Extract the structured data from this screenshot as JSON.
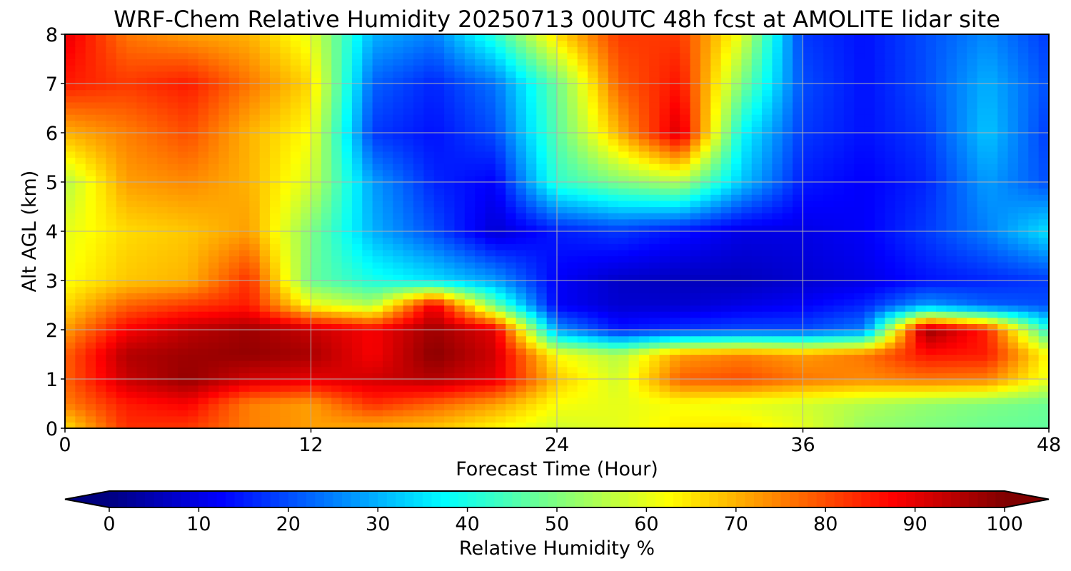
{
  "chart_data": {
    "type": "heatmap",
    "title": "WRF-Chem Relative Humidity 20250713 00UTC 48h fcst at AMOLITE lidar site",
    "xlabel": "Forecast Time (Hour)",
    "ylabel": "Alt AGL (km)",
    "xlim": [
      0,
      48
    ],
    "ylim": [
      0,
      8
    ],
    "x_ticks": [
      0,
      12,
      24,
      36,
      48
    ],
    "y_ticks": [
      0,
      1,
      2,
      3,
      4,
      5,
      6,
      7,
      8
    ],
    "grid": true,
    "colormap": "jet",
    "colorbar": {
      "label": "Relative Humidity %",
      "range": [
        0,
        100
      ],
      "ticks": [
        0,
        10,
        20,
        30,
        40,
        50,
        60,
        70,
        80,
        90,
        100
      ],
      "extend": "both",
      "orientation": "horizontal",
      "placement": "bottom"
    },
    "x": [
      0,
      3,
      6,
      9,
      12,
      15,
      18,
      21,
      24,
      27,
      30,
      33,
      36,
      39,
      42,
      45,
      48
    ],
    "y": [
      0,
      0.5,
      1,
      1.5,
      2,
      2.5,
      3,
      4,
      5,
      6,
      7,
      8
    ],
    "z": [
      [
        65,
        83,
        82,
        75,
        72,
        70,
        68,
        63,
        58,
        60,
        64,
        65,
        60,
        52,
        50,
        48,
        47
      ],
      [
        75,
        85,
        88,
        75,
        72,
        83,
        78,
        72,
        62,
        60,
        62,
        60,
        58,
        55,
        52,
        50,
        48
      ],
      [
        78,
        93,
        98,
        92,
        90,
        92,
        95,
        90,
        68,
        58,
        78,
        80,
        76,
        74,
        76,
        75,
        60
      ],
      [
        78,
        95,
        97,
        98,
        96,
        88,
        99,
        92,
        62,
        55,
        72,
        75,
        72,
        76,
        86,
        85,
        62
      ],
      [
        72,
        88,
        94,
        97,
        93,
        88,
        97,
        90,
        28,
        15,
        18,
        20,
        20,
        25,
        98,
        84,
        40
      ],
      [
        66,
        78,
        82,
        85,
        62,
        55,
        90,
        48,
        12,
        8,
        8,
        10,
        12,
        16,
        28,
        22,
        20
      ],
      [
        62,
        68,
        70,
        83,
        48,
        40,
        35,
        28,
        12,
        7,
        6,
        6,
        8,
        10,
        14,
        16,
        18
      ],
      [
        60,
        66,
        68,
        72,
        50,
        30,
        20,
        8,
        15,
        18,
        14,
        10,
        10,
        12,
        18,
        25,
        35
      ],
      [
        55,
        72,
        74,
        70,
        58,
        28,
        16,
        12,
        42,
        50,
        55,
        32,
        15,
        12,
        16,
        28,
        20
      ],
      [
        70,
        75,
        80,
        70,
        62,
        18,
        14,
        20,
        46,
        70,
        92,
        38,
        18,
        14,
        18,
        32,
        18
      ],
      [
        85,
        82,
        85,
        76,
        66,
        22,
        16,
        24,
        48,
        78,
        86,
        50,
        20,
        14,
        20,
        30,
        20
      ],
      [
        90,
        76,
        72,
        70,
        60,
        30,
        25,
        42,
        66,
        82,
        82,
        60,
        18,
        14,
        20,
        26,
        18
      ]
    ]
  }
}
